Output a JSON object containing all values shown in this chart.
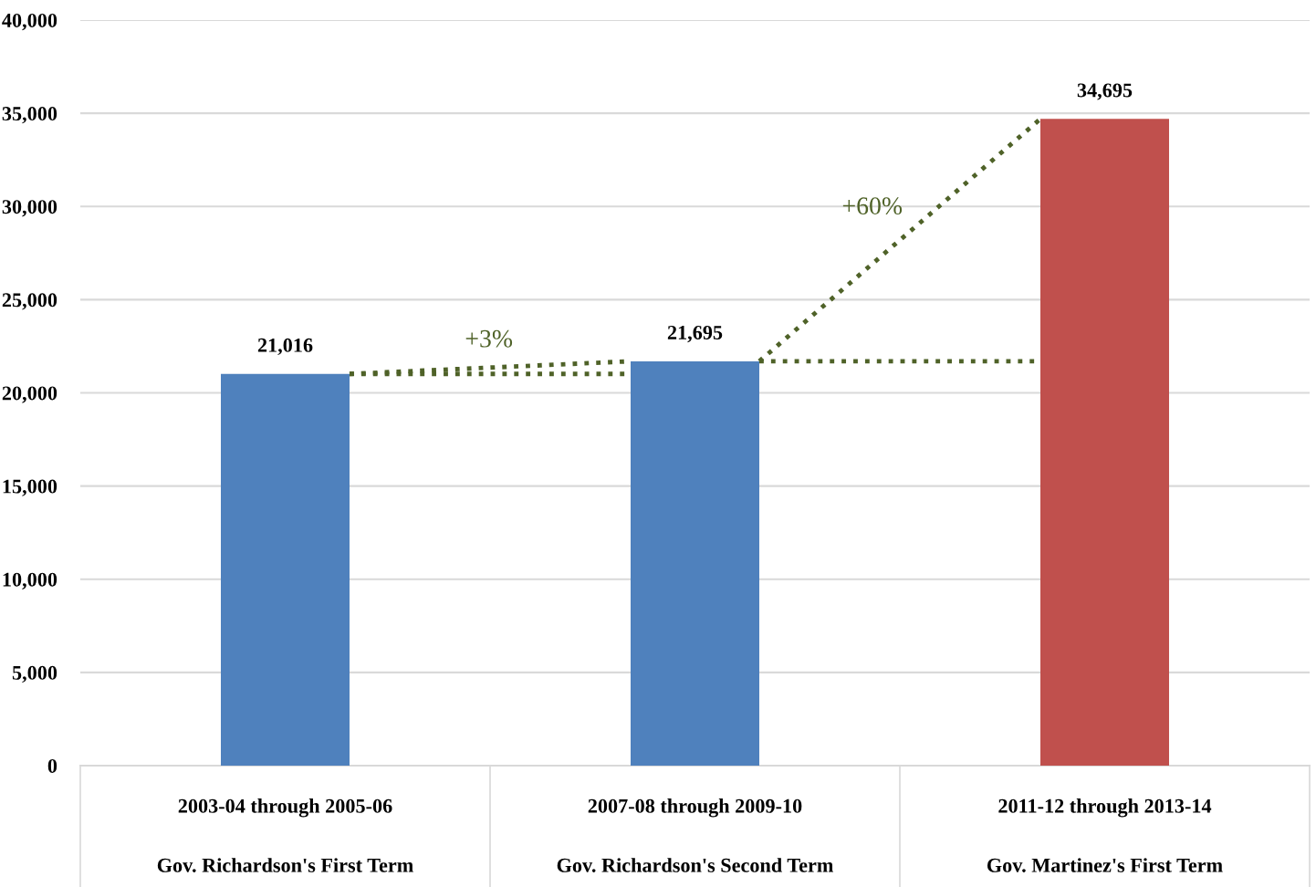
{
  "chart_data": {
    "type": "bar",
    "categories": [
      "2003-04 through 2005-06\nGov. Richardson's First Term",
      "2007-08 through 2009-10\nGov. Richardson's Second Term",
      "2011-12 through 2013-14\nGov. Martinez's First Term"
    ],
    "values": [
      21016,
      21695,
      34695
    ],
    "colors": [
      "#4f81bd",
      "#4f81bd",
      "#c0504d"
    ],
    "value_labels": [
      "21,016",
      "21,695",
      "34,695"
    ],
    "ylim": [
      0,
      40000
    ],
    "yticks": [
      0,
      {
        "value": 5000,
        "label": "5,000"
      },
      {
        "value": 10000,
        "label": "10,000"
      },
      {
        "value": 15000,
        "label": "15,000"
      },
      {
        "value": 20000,
        "label": "20,000"
      },
      {
        "value": 25000,
        "label": "25,000"
      },
      {
        "value": 30000,
        "label": "30,000"
      },
      {
        "value": 35000,
        "label": "35,000"
      },
      {
        "value": 40000,
        "label": "40,000"
      }
    ],
    "grid": "y",
    "annotations": [
      "+3%",
      "+60%"
    ]
  }
}
